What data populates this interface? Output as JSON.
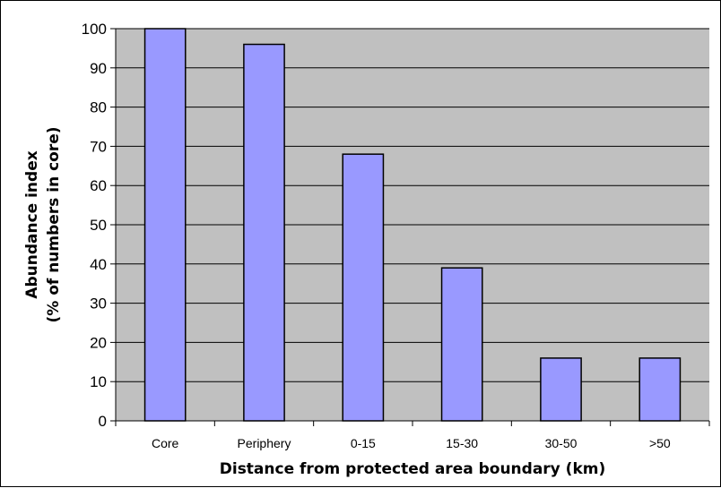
{
  "colors": {
    "plot_background": "#c0c0c0",
    "bar_fill": "#9999ff",
    "bar_stroke": "#000000",
    "gridline": "#000000"
  },
  "chart_data": {
    "type": "bar",
    "categories": [
      "Core",
      "Periphery",
      "0-15",
      "15-30",
      "30-50",
      ">50"
    ],
    "values": [
      100,
      96,
      68,
      39,
      16,
      16
    ],
    "xlabel": "Distance from protected area boundary (km)",
    "ylabel": [
      "Abundance index",
      "(% of numbers in core)"
    ],
    "ylim": [
      0,
      100
    ],
    "yticks": [
      0,
      10,
      20,
      30,
      40,
      50,
      60,
      70,
      80,
      90,
      100
    ],
    "grid": true,
    "legend": "none"
  }
}
